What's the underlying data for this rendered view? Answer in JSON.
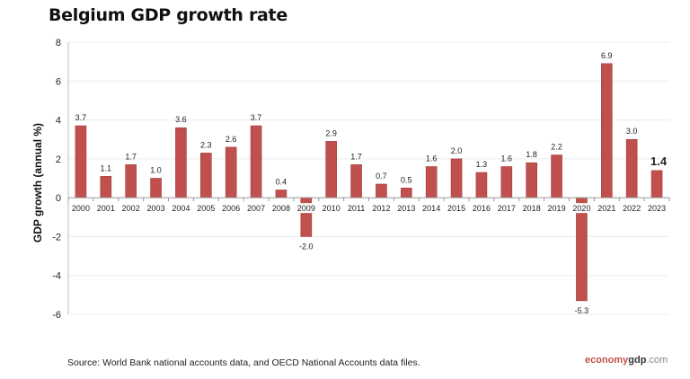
{
  "chart_data": {
    "type": "bar",
    "title": "Belgium GDP growth rate",
    "xlabel": "",
    "ylabel": "GDP growth (annual %)",
    "ylim": [
      -6,
      8
    ],
    "yticks": [
      -6,
      -4,
      -2,
      0,
      2,
      4,
      6,
      8
    ],
    "grid": true,
    "bar_color": "#c0504d",
    "categories": [
      "2000",
      "2001",
      "2002",
      "2003",
      "2004",
      "2005",
      "2006",
      "2007",
      "2008",
      "2009",
      "2010",
      "2011",
      "2012",
      "2013",
      "2014",
      "2015",
      "2016",
      "2017",
      "2018",
      "2019",
      "2020",
      "2021",
      "2022",
      "2023"
    ],
    "values": [
      3.7,
      1.1,
      1.7,
      1.0,
      3.6,
      2.3,
      2.6,
      3.7,
      0.4,
      -2.0,
      2.9,
      1.7,
      0.7,
      0.5,
      1.6,
      2.0,
      1.3,
      1.6,
      1.8,
      2.2,
      -5.3,
      6.9,
      3.0,
      1.4
    ],
    "labels": [
      "3.7",
      "1.1",
      "1.7",
      "1.0",
      "3.6",
      "2.3",
      "2.6",
      "3.7",
      "0.4",
      "-2.0",
      "2.9",
      "1.7",
      "0.7",
      "0.5",
      "1.6",
      "2.0",
      "1.3",
      "1.6",
      "1.8",
      "2.2",
      "-5.3",
      "6.9",
      "3.0",
      "1.4"
    ],
    "highlight_last": true
  },
  "footer": {
    "source": "Source: World Bank national accounts data, and OECD National Accounts data files.",
    "logo_part1": "economy",
    "logo_part2": "gdp",
    "logo_part3": ".com"
  }
}
